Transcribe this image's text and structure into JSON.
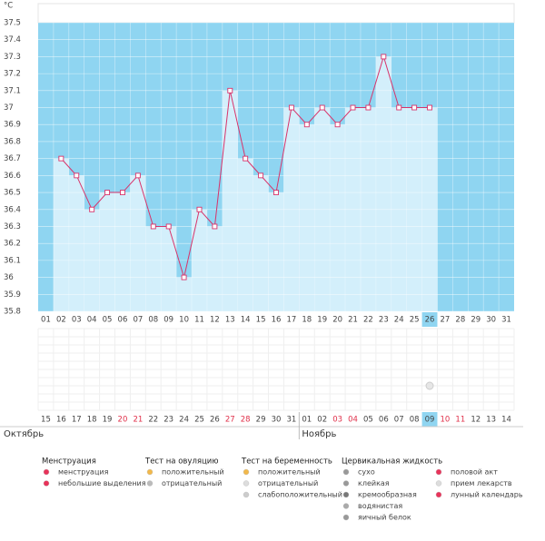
{
  "chart_data": {
    "type": "line",
    "y_unit": "°C",
    "categories": [
      "01",
      "02",
      "03",
      "04",
      "05",
      "06",
      "07",
      "08",
      "09",
      "10",
      "11",
      "12",
      "13",
      "14",
      "15",
      "16",
      "17",
      "18",
      "19",
      "20",
      "21",
      "22",
      "23",
      "24",
      "25",
      "26",
      "27",
      "28",
      "29",
      "30",
      "31"
    ],
    "series": [
      {
        "color": "#d8336a",
        "values": [
          null,
          36.7,
          36.6,
          36.4,
          36.5,
          36.5,
          36.6,
          36.3,
          36.3,
          36.0,
          36.4,
          36.3,
          37.1,
          36.7,
          36.6,
          36.5,
          37.0,
          36.9,
          37.0,
          36.9,
          37.0,
          37.0,
          37.3,
          37.0,
          37.0,
          37.0,
          null,
          null,
          null,
          null,
          null
        ]
      }
    ],
    "ylim": [
      35.8,
      37.5
    ],
    "yticks": [
      35.8,
      35.9,
      36,
      36.1,
      36.2,
      36.3,
      36.4,
      36.5,
      36.6,
      36.7,
      36.8,
      36.9,
      37,
      37.1,
      37.2,
      37.3,
      37.4,
      37.5
    ],
    "grid": true,
    "selected_column": 25,
    "months": [
      {
        "name": "Октябрь",
        "dates": [
          {
            "label": "15"
          },
          {
            "label": "16"
          },
          {
            "label": "17"
          },
          {
            "label": "18"
          },
          {
            "label": "19"
          },
          {
            "label": "20",
            "weekend": true
          },
          {
            "label": "21",
            "weekend": true
          },
          {
            "label": "22"
          },
          {
            "label": "23"
          },
          {
            "label": "24"
          },
          {
            "label": "25"
          },
          {
            "label": "26"
          },
          {
            "label": "27",
            "weekend": true
          },
          {
            "label": "28",
            "weekend": true
          },
          {
            "label": "29"
          },
          {
            "label": "30"
          },
          {
            "label": "31"
          }
        ]
      },
      {
        "name": "Ноябрь",
        "dates": [
          {
            "label": "01"
          },
          {
            "label": "02"
          },
          {
            "label": "03",
            "weekend": true
          },
          {
            "label": "04",
            "weekend": true
          },
          {
            "label": "05"
          },
          {
            "label": "06"
          },
          {
            "label": "07"
          },
          {
            "label": "08"
          },
          {
            "label": "09"
          },
          {
            "label": "10",
            "weekend": true
          },
          {
            "label": "11",
            "weekend": true
          },
          {
            "label": "12"
          },
          {
            "label": "13"
          },
          {
            "label": "14"
          }
        ]
      }
    ]
  },
  "legend": [
    {
      "title": "Менструация",
      "items": [
        "менструация",
        "небольшие выделения"
      ]
    },
    {
      "title": "Тест на овуляцию",
      "items": [
        "положительный",
        "отрицательный"
      ]
    },
    {
      "title": "Тест на беременность",
      "items": [
        "положительный",
        "отрицательный",
        "слабоположительный"
      ]
    },
    {
      "title": "Цервикальная жидкость",
      "items": [
        "сухо",
        "клейкая",
        "кремообразная",
        "водянистая",
        "яичный белок"
      ]
    },
    {
      "items": [
        "половой акт",
        "прием лекарств",
        "лунный календарь"
      ]
    }
  ]
}
